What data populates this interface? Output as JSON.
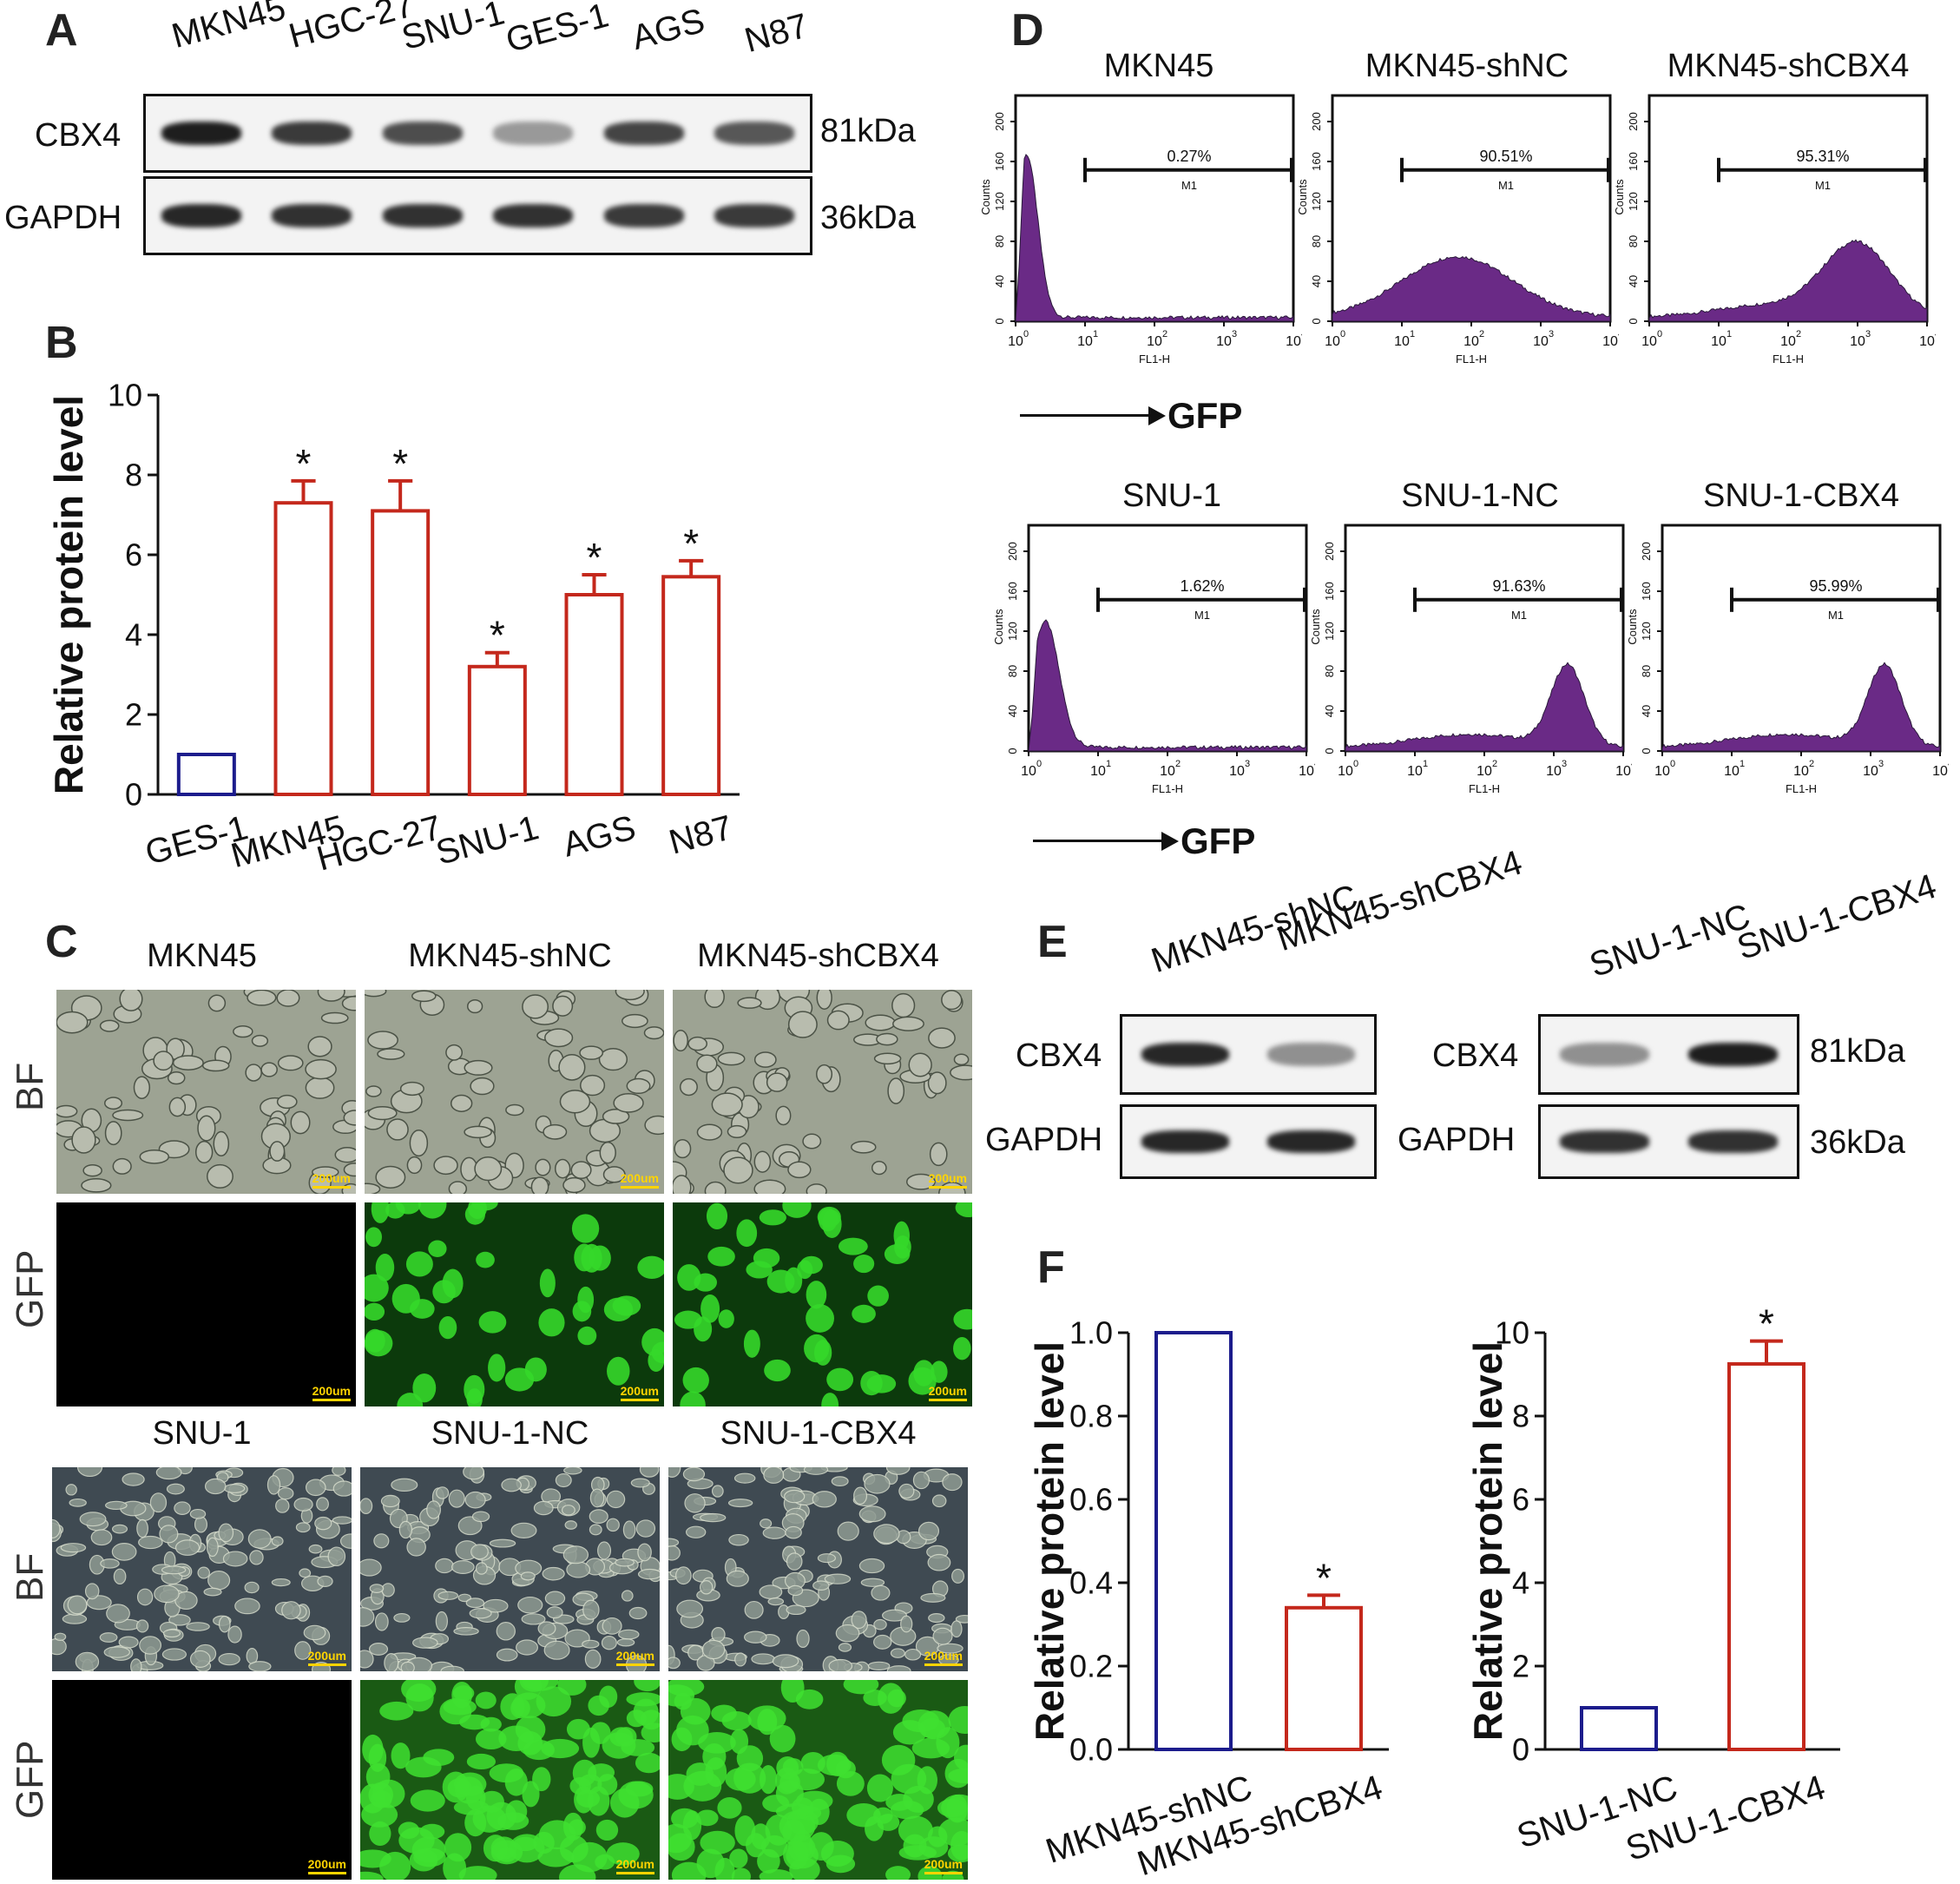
{
  "panel_letters": {
    "A": "A",
    "B": "B",
    "C": "C",
    "D": "D",
    "E": "E",
    "F": "F"
  },
  "panelA": {
    "lanes": [
      "MKN45",
      "HGC-27",
      "SNU-1",
      "GES-1",
      "AGS",
      "N87"
    ],
    "rows": [
      "CBX4",
      "GAPDH"
    ],
    "sizes": [
      "81kDa",
      "36kDa"
    ],
    "cbx4_intensity": [
      0.95,
      0.8,
      0.7,
      0.3,
      0.75,
      0.65
    ],
    "gapdh_intensity": [
      0.9,
      0.85,
      0.85,
      0.85,
      0.8,
      0.8
    ]
  },
  "panelC": {
    "top_titles": [
      "MKN45",
      "MKN45-shNC",
      "MKN45-shCBX4"
    ],
    "bottom_titles": [
      "SNU-1",
      "SNU-1-NC",
      "SNU-1-CBX4"
    ],
    "row_labels": [
      "BF",
      "GFP",
      "BF",
      "GFP"
    ],
    "scale": "200um"
  },
  "panelD": {
    "titles": [
      "MKN45",
      "MKN45-shNC",
      "MKN45-shCBX4",
      "SNU-1",
      "SNU-1-NC",
      "SNU-1-CBX4"
    ],
    "percents": [
      "0.27%",
      "90.51%",
      "95.31%",
      "1.62%",
      "91.63%",
      "95.99%"
    ],
    "gate": "M1",
    "ylabel": "Counts",
    "xlabel": "FL1-H",
    "yticks": [
      "0",
      "40",
      "80",
      "120",
      "160",
      "200"
    ],
    "arrow_label": "GFP"
  },
  "panelE": {
    "left_lanes": [
      "MKN45-shNC",
      "MKN45-shCBX4"
    ],
    "right_lanes": [
      "SNU-1-NC",
      "SNU-1-CBX4"
    ],
    "rows": [
      "CBX4",
      "GAPDH"
    ],
    "sizes": [
      "81kDa",
      "36kDa"
    ],
    "left_cbx4_intensity": [
      0.9,
      0.35
    ],
    "right_cbx4_intensity": [
      0.35,
      0.95
    ]
  },
  "chart_data": [
    {
      "panel": "B",
      "type": "bar",
      "categories": [
        "GES-1",
        "MKN45",
        "HGC-27",
        "SNU-1",
        "AGS",
        "N87"
      ],
      "values": [
        1.0,
        7.3,
        7.1,
        3.2,
        5.0,
        5.45
      ],
      "errors": [
        0,
        0.55,
        0.75,
        0.35,
        0.5,
        0.4
      ],
      "significant": [
        false,
        true,
        true,
        true,
        true,
        true
      ],
      "ylabel": "Relative protein level",
      "ylim": [
        0,
        10
      ],
      "yticks": [
        0,
        2,
        4,
        6,
        8,
        10
      ],
      "colors": [
        "#1c1c8c",
        "#c4281c"
      ]
    },
    {
      "panel": "F-left",
      "type": "bar",
      "categories": [
        "MKN45-shNC",
        "MKN45-shCBX4"
      ],
      "values": [
        1.0,
        0.34
      ],
      "errors": [
        0,
        0.03
      ],
      "significant": [
        false,
        true
      ],
      "ylabel": "Relative protein level",
      "ylim": [
        0,
        1.0
      ],
      "yticks": [
        0.0,
        0.2,
        0.4,
        0.6,
        0.8,
        1.0
      ],
      "colors": [
        "#1c1c8c",
        "#c4281c"
      ]
    },
    {
      "panel": "F-right",
      "type": "bar",
      "categories": [
        "SNU-1-NC",
        "SNU-1-CBX4"
      ],
      "values": [
        1.0,
        9.25
      ],
      "errors": [
        0,
        0.55
      ],
      "significant": [
        false,
        true
      ],
      "ylabel": "Relative protein level",
      "ylim": [
        0,
        10
      ],
      "yticks": [
        0,
        2,
        4,
        6,
        8,
        10
      ],
      "colors": [
        "#1c1c8c",
        "#c4281c"
      ]
    }
  ],
  "star": "*"
}
